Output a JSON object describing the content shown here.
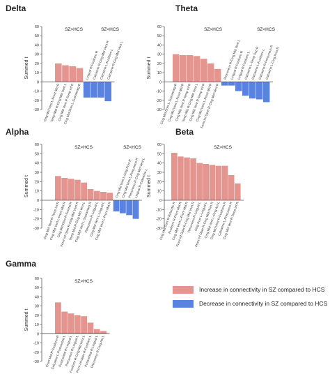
{
  "legend": {
    "increase": "Increase in connectivity in SZ compared to HCS",
    "decrease": "Decrease in connectivity in SZ compared to HCS"
  },
  "colors": {
    "increase": "#e49590",
    "decrease": "#5a82e0",
    "axis": "#555555"
  },
  "chart_data": [
    {
      "type": "bar",
      "title": "Delta",
      "ylabel": "Summed t",
      "ylim": [
        -30,
        60
      ],
      "yticks": [
        -30,
        -20,
        -10,
        0,
        10,
        20,
        30,
        40,
        50,
        60
      ],
      "groups": [
        "SZ>HCS",
        "SZ<HCS"
      ],
      "categories": [
        "Cing Mid Vent L-Front Mid R",
        "Temp Mid R-Cing Mid Vent L",
        "Cing Mid Vent R-Temp Inf R",
        "Cing Mid Dors L-Supramarg R",
        "Lingual R-Fusiform R",
        "Calcarine R-Cing Mid Vent R",
        "Calcarine L-Fusiform L",
        "Calcarine R-Cing Mid Vent L"
      ],
      "values": [
        20,
        18,
        17,
        15,
        -17,
        -17,
        -17,
        -21
      ]
    },
    {
      "type": "bar",
      "title": "Theta",
      "ylabel": "Summed t",
      "ylim": [
        -30,
        60
      ],
      "yticks": [
        -30,
        -20,
        -10,
        0,
        10,
        20,
        30,
        40,
        50,
        60
      ],
      "groups": [
        "SZ>HCS",
        "SZ<HCS"
      ],
      "categories": [
        "Cing Mid Dors L-Supramarg R",
        "Cing Mid Vent L-Front Mid R",
        "Cing Mid Vent R-Temp Inf R",
        "Temp Mid R-Cing Mid Vent L",
        "Cing Mid Vent R-Temp Inf R",
        "Cing Mid Vent L-Front Mid R",
        "Front Inf Oper R-Cing Mid Vent R",
        "Precuneus R-Cing Mid Vent L",
        "Lingual R-Fusiform R",
        "Lingual R-Fusiform L",
        "Calcarine L-Temp Sup R",
        "Calcarine L-Fusiform L",
        "Calcarine R-Precuneus R",
        "Calcarine L-Cing Post R"
      ],
      "values": [
        30,
        29,
        29,
        28,
        25,
        20,
        14,
        -4,
        -4,
        -10,
        -15,
        -18,
        -19,
        -22
      ]
    },
    {
      "type": "bar",
      "title": "Alpha",
      "ylabel": "Summed t",
      "ylim": [
        -30,
        60
      ],
      "yticks": [
        -30,
        -20,
        -10,
        0,
        10,
        20,
        30,
        40,
        50,
        60
      ],
      "groups": [
        "SZ>HCS",
        "SZ<HCS"
      ],
      "categories": [
        "Cing Mid Vent R-Temp Inf R",
        "Cing Mid Vent L-Front Mid R",
        "Cing Mid Dors R-Frontal R",
        "Front Inf Oper R-Cing Mid Vent R",
        "Temp Mid R-Cing Mid Vent L",
        "Cing Mid Vent L-Supramarg R",
        "Precuneus R-Lingual L",
        "Cing Mid Vent L-Lingual L",
        "Cing Mid Vent L-Front Mid R",
        "Cing Mid Vent L-Cing Post R",
        "Cing Mid Vent L-Precuneus R",
        "Precuneus R-Cing Mid Vent L",
        "Lingual R-Calcarine L"
      ],
      "values": [
        26,
        24,
        23,
        22,
        19,
        12,
        10,
        9,
        8,
        -12,
        -14,
        -16,
        -20
      ]
    },
    {
      "type": "bar",
      "title": "Beta",
      "ylabel": "Summed t",
      "ylim": [
        -30,
        60
      ],
      "yticks": [
        -30,
        -20,
        -10,
        0,
        10,
        20,
        30,
        40,
        50,
        60
      ],
      "groups": [
        "SZ>HCS"
      ],
      "categories": [
        "Cing Mid Dors R-Rolandic R",
        "Fusiform R-Front Mid R",
        "Cing Mid Vent L-Front Mid R",
        "Front Inf Oper R-Cing Mid Vent R",
        "Precuneus R-Lingual L",
        "Cing Post L-Lingual L",
        "Front Inf Oper R-Cing Mid Dors R",
        "Cing Mid Vent L-Cing Ant L",
        "Cing Mid Vent R-Fusiform R",
        "Calcarine L-Precuneus R",
        "Cing Mid Vent R-Temp Inf R"
      ],
      "values": [
        51,
        47,
        46,
        45,
        40,
        39,
        38,
        37,
        37,
        27,
        18
      ]
    },
    {
      "type": "bar",
      "title": "Gamma",
      "ylabel": "Summed t",
      "ylim": [
        -30,
        60
      ],
      "yticks": [
        -30,
        -20,
        -10,
        0,
        10,
        20,
        30,
        40,
        50,
        60
      ],
      "groups": [
        "SZ>HCS"
      ],
      "categories": [
        "Front Mid R-Fusiform R",
        "Calcarine L-Postcentral L",
        "Postcentral R-Lingual L",
        "Precuneus R-Lingual L",
        "Fusiform R-Cing Mid Vent L",
        "Front Inf Oper R-Fusiform L",
        "Postcentral R-Lingual L",
        "Precuneus R-Cing Ant L"
      ],
      "values": [
        34,
        24,
        22,
        20,
        19,
        12,
        5,
        3
      ]
    }
  ]
}
